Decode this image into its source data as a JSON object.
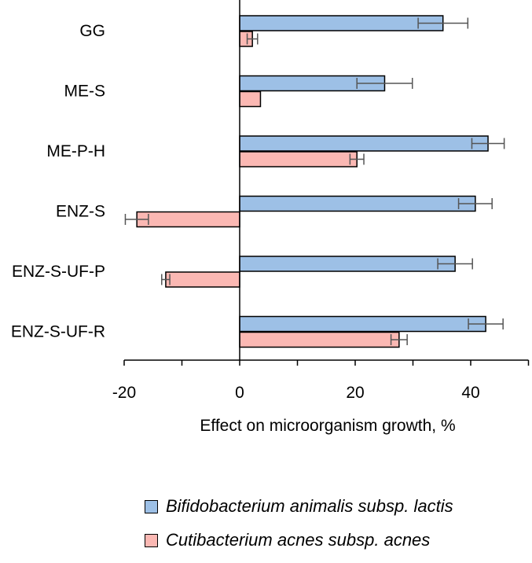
{
  "chart_data": {
    "type": "bar",
    "orientation": "horizontal",
    "categories": [
      "GG",
      "ME-S",
      "ME-P-H",
      "ENZ-S",
      "ENZ-S-UF-P",
      "ENZ-S-UF-R"
    ],
    "series": [
      {
        "name": "Bifidobacterium animalis subsp. lactis",
        "color": "#9dc0e6",
        "values": [
          35.2,
          25.1,
          43.0,
          40.8,
          37.3,
          42.6
        ],
        "errors": [
          4.3,
          4.8,
          2.8,
          2.9,
          3.0,
          3.0
        ]
      },
      {
        "name": "Cutibacterium acnes subsp. acnes",
        "color": "#fbb8b3",
        "values": [
          2.2,
          3.6,
          20.3,
          -17.8,
          -12.8,
          27.6
        ],
        "errors": [
          0.9,
          0.0,
          1.2,
          2.0,
          0.7,
          1.4
        ]
      }
    ],
    "xlabel": "Effect on microorganism growth, %",
    "ylabel": "",
    "xlim": [
      -20,
      50
    ],
    "xticks": [
      -20,
      0,
      20,
      40
    ],
    "grid": false,
    "legend_position": "bottom"
  }
}
